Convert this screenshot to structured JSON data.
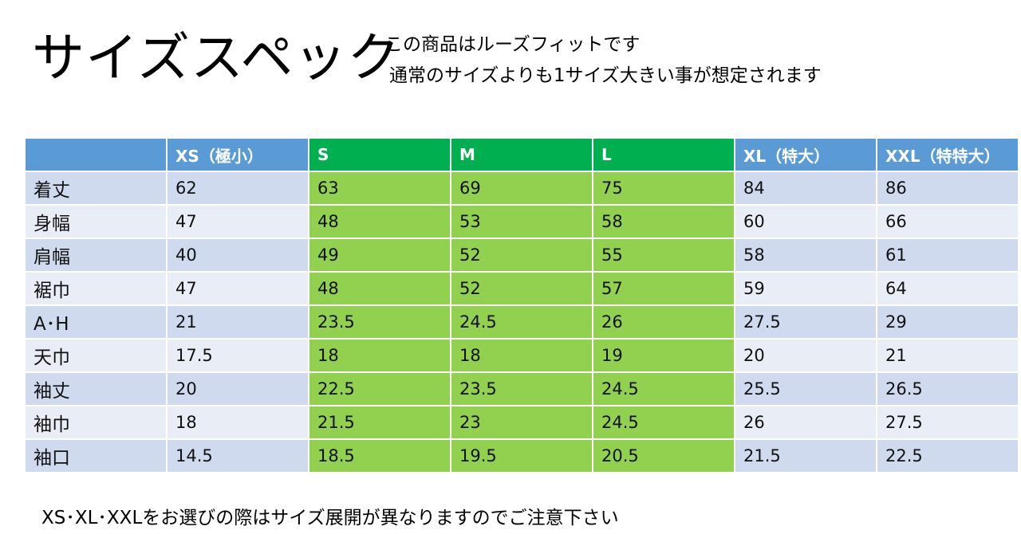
{
  "title": "サイズスペック",
  "notes": [
    "この商品はルーズフィットです",
    "通常のサイズよりも1サイズ大きい事が想定されます"
  ],
  "colors": {
    "header_blue": "#5b9bd5",
    "header_green": "#00b050",
    "cell_blue_dark": "#cfdaee",
    "cell_blue_light": "#e9edf6",
    "cell_green": "#92d050"
  },
  "table": {
    "headers": [
      "",
      "XS（極小）",
      "S",
      "M",
      "L",
      "XL（特大）",
      "XXL（特特大）"
    ],
    "rows": [
      {
        "label": "着丈",
        "values": [
          "62",
          "63",
          "69",
          "75",
          "84",
          "86"
        ]
      },
      {
        "label": "身幅",
        "values": [
          "47",
          "48",
          "53",
          "58",
          "60",
          "66"
        ]
      },
      {
        "label": "肩幅",
        "values": [
          "40",
          "49",
          "52",
          "55",
          "58",
          "61"
        ]
      },
      {
        "label": "裾巾",
        "values": [
          "47",
          "48",
          "52",
          "57",
          "59",
          "64"
        ]
      },
      {
        "label": "A･H",
        "values": [
          "21",
          "23.5",
          "24.5",
          "26",
          "27.5",
          "29"
        ]
      },
      {
        "label": "天巾",
        "values": [
          "17.5",
          "18",
          "18",
          "19",
          "20",
          "21"
        ]
      },
      {
        "label": "袖丈",
        "values": [
          "20",
          "22.5",
          "23.5",
          "24.5",
          "25.5",
          "26.5"
        ]
      },
      {
        "label": "袖巾",
        "values": [
          "18",
          "21.5",
          "23",
          "24.5",
          "26",
          "27.5"
        ]
      },
      {
        "label": "袖口",
        "values": [
          "14.5",
          "18.5",
          "19.5",
          "20.5",
          "21.5",
          "22.5"
        ]
      }
    ]
  },
  "footer": "XS･XL･XXLをお選びの際はサイズ展開が異なりますのでご注意下さい"
}
